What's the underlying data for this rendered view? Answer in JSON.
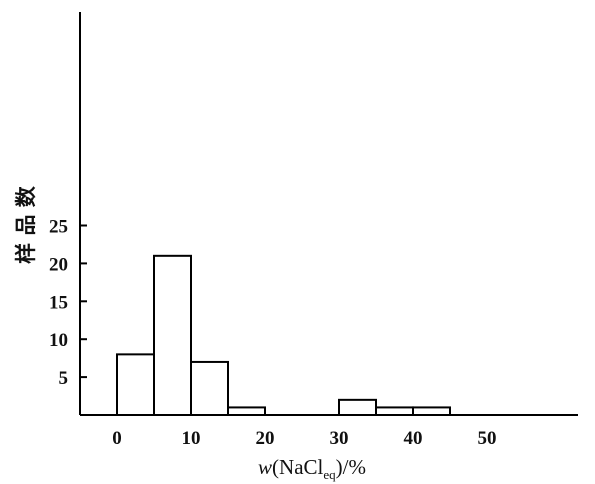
{
  "chart_data": {
    "type": "bar",
    "subtype": "histogram",
    "bin_width": 5,
    "bins": [
      {
        "x0": 0,
        "x1": 5,
        "value": 8
      },
      {
        "x0": 5,
        "x1": 10,
        "value": 21
      },
      {
        "x0": 10,
        "x1": 15,
        "value": 7
      },
      {
        "x0": 15,
        "x1": 20,
        "value": 1
      },
      {
        "x0": 20,
        "x1": 25,
        "value": 0
      },
      {
        "x0": 25,
        "x1": 30,
        "value": 0
      },
      {
        "x0": 30,
        "x1": 35,
        "value": 2
      },
      {
        "x0": 35,
        "x1": 40,
        "value": 1
      },
      {
        "x0": 40,
        "x1": 45,
        "value": 1
      },
      {
        "x0": 45,
        "x1": 50,
        "value": 0
      },
      {
        "x0": 50,
        "x1": 55,
        "value": 0
      }
    ],
    "x_ticks": [
      "0",
      "10",
      "20",
      "30",
      "40",
      "50"
    ],
    "y_ticks": [
      "5",
      "10",
      "15",
      "20",
      "25"
    ],
    "xlim": [
      -5,
      55
    ],
    "ylim": [
      0,
      26
    ],
    "ylabel": "样 品 数",
    "xlabel": {
      "italic": "w",
      "prefix": "(NaCl",
      "subscript": "eq",
      "suffix": ")/%"
    },
    "grid": false,
    "bar_fill": "#ffffff",
    "bar_stroke": "#000000"
  }
}
